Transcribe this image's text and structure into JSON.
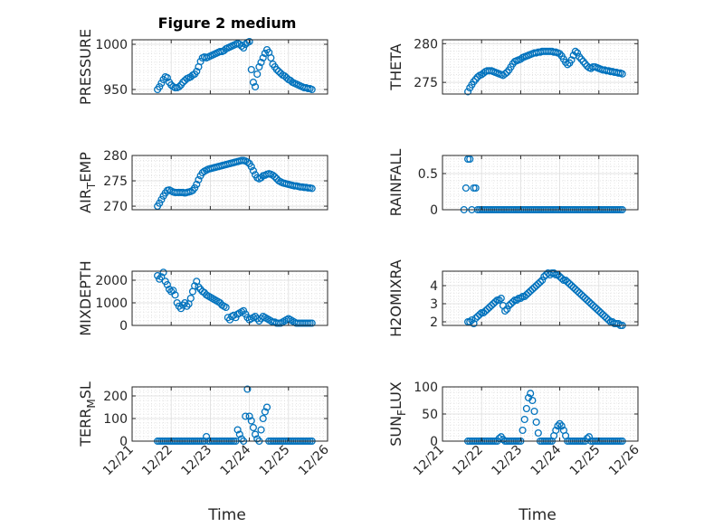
{
  "figure_title": "Figure 2 medium",
  "x_axis_label": "Time",
  "x_tick_labels": [
    "12/21",
    "12/22",
    "12/23",
    "12/24",
    "12/25",
    "12/26"
  ],
  "marker_color": "#0072BD",
  "chart_data": [
    {
      "type": "scatter",
      "ylabel": "PRESSURE",
      "xlim": [
        0,
        5
      ],
      "ylim": [
        945,
        1005
      ],
      "yticks": [
        950,
        1000
      ],
      "ytick_labels": [
        "950",
        "1000"
      ],
      "x": [
        0.65,
        0.7,
        0.75,
        0.8,
        0.85,
        0.9,
        0.95,
        1.0,
        1.05,
        1.1,
        1.15,
        1.2,
        1.25,
        1.3,
        1.35,
        1.4,
        1.45,
        1.5,
        1.55,
        1.6,
        1.65,
        1.7,
        1.75,
        1.8,
        1.85,
        1.9,
        1.95,
        2.0,
        2.05,
        2.1,
        2.15,
        2.2,
        2.25,
        2.3,
        2.35,
        2.4,
        2.45,
        2.5,
        2.55,
        2.6,
        2.65,
        2.7,
        2.75,
        2.8,
        2.85,
        2.9,
        2.95,
        3.0,
        3.05,
        3.1,
        3.15,
        3.2,
        3.25,
        3.3,
        3.35,
        3.4,
        3.45,
        3.5,
        3.55,
        3.6,
        3.65,
        3.7,
        3.75,
        3.8,
        3.85,
        3.9,
        3.95,
        4.0,
        4.05,
        4.1,
        4.15,
        4.2,
        4.25,
        4.3,
        4.35,
        4.4,
        4.45,
        4.5,
        4.55,
        4.6
      ],
      "y": [
        950,
        953,
        957,
        961,
        964,
        963,
        958,
        955,
        953,
        952,
        952,
        953,
        955,
        958,
        960,
        962,
        963,
        964,
        966,
        967,
        970,
        975,
        981,
        985,
        986,
        985,
        986,
        987,
        988,
        989,
        990,
        991,
        992,
        992,
        993,
        995,
        996,
        997,
        998,
        999,
        1000,
        1001,
        1000,
        998,
        996,
        1000,
        1002,
        1003,
        972,
        958,
        953,
        967,
        975,
        980,
        985,
        990,
        994,
        991,
        985,
        978,
        975,
        972,
        970,
        968,
        966,
        965,
        963,
        961,
        960,
        958,
        957,
        956,
        955,
        954,
        953,
        952,
        952,
        951,
        951,
        950
      ]
    },
    {
      "type": "scatter",
      "ylabel": "THETA",
      "xlim": [
        0,
        5
      ],
      "ylim": [
        273.5,
        280.5
      ],
      "yticks": [
        275,
        280
      ],
      "ytick_labels": [
        "275",
        "280"
      ],
      "x": [
        0.65,
        0.7,
        0.75,
        0.8,
        0.85,
        0.9,
        0.95,
        1.0,
        1.05,
        1.1,
        1.15,
        1.2,
        1.25,
        1.3,
        1.35,
        1.4,
        1.45,
        1.5,
        1.55,
        1.6,
        1.65,
        1.7,
        1.75,
        1.8,
        1.85,
        1.9,
        1.95,
        2.0,
        2.05,
        2.1,
        2.15,
        2.2,
        2.25,
        2.3,
        2.35,
        2.4,
        2.45,
        2.5,
        2.55,
        2.6,
        2.65,
        2.7,
        2.75,
        2.8,
        2.85,
        2.9,
        2.95,
        3.0,
        3.05,
        3.1,
        3.15,
        3.2,
        3.25,
        3.3,
        3.35,
        3.4,
        3.45,
        3.5,
        3.55,
        3.6,
        3.65,
        3.7,
        3.75,
        3.8,
        3.85,
        3.9,
        3.95,
        4.0,
        4.05,
        4.1,
        4.15,
        4.2,
        4.25,
        4.3,
        4.35,
        4.4,
        4.45,
        4.5,
        4.55,
        4.6
      ],
      "y": [
        273.8,
        274.3,
        274.7,
        275.1,
        275.4,
        275.7,
        275.9,
        276.0,
        276.2,
        276.4,
        276.5,
        276.5,
        276.5,
        276.4,
        276.3,
        276.2,
        276.1,
        276.0,
        275.9,
        276.1,
        276.3,
        276.6,
        277.0,
        277.4,
        277.7,
        277.8,
        277.9,
        278.0,
        278.2,
        278.3,
        278.4,
        278.5,
        278.6,
        278.7,
        278.8,
        278.8,
        278.9,
        278.9,
        279.0,
        279.0,
        279.0,
        279.0,
        279.0,
        279.0,
        278.9,
        278.9,
        278.8,
        278.7,
        278.4,
        278.0,
        277.6,
        277.3,
        277.5,
        277.9,
        278.5,
        279.0,
        278.8,
        278.3,
        278.0,
        277.7,
        277.4,
        277.1,
        276.9,
        276.8,
        277.0,
        277.0,
        276.9,
        276.8,
        276.7,
        276.6,
        276.6,
        276.5,
        276.5,
        276.4,
        276.4,
        276.3,
        276.3,
        276.2,
        276.2,
        276.1
      ]
    },
    {
      "type": "scatter",
      "ylabel": "AIR_TEMP",
      "xlim": [
        0,
        5
      ],
      "ylim": [
        269.3,
        280
      ],
      "yticks": [
        270,
        275,
        280
      ],
      "ytick_labels": [
        "270",
        "275",
        "280"
      ],
      "x": [
        0.65,
        0.7,
        0.75,
        0.8,
        0.85,
        0.9,
        0.95,
        1.0,
        1.05,
        1.1,
        1.15,
        1.2,
        1.25,
        1.3,
        1.35,
        1.4,
        1.45,
        1.5,
        1.55,
        1.6,
        1.65,
        1.7,
        1.75,
        1.8,
        1.85,
        1.9,
        1.95,
        2.0,
        2.05,
        2.1,
        2.15,
        2.2,
        2.25,
        2.3,
        2.35,
        2.4,
        2.45,
        2.5,
        2.55,
        2.6,
        2.65,
        2.7,
        2.75,
        2.8,
        2.85,
        2.9,
        2.95,
        3.0,
        3.05,
        3.1,
        3.15,
        3.2,
        3.25,
        3.3,
        3.35,
        3.4,
        3.45,
        3.5,
        3.55,
        3.6,
        3.65,
        3.7,
        3.75,
        3.8,
        3.85,
        3.9,
        3.95,
        4.0,
        4.05,
        4.1,
        4.15,
        4.2,
        4.25,
        4.3,
        4.35,
        4.4,
        4.45,
        4.5,
        4.55,
        4.6
      ],
      "y": [
        270.0,
        270.6,
        271.3,
        272.0,
        272.6,
        273.1,
        273.2,
        273.0,
        272.8,
        272.7,
        272.7,
        272.7,
        272.7,
        272.7,
        272.6,
        272.7,
        272.8,
        272.9,
        273.1,
        273.6,
        274.3,
        275.2,
        276.0,
        276.6,
        276.9,
        277.1,
        277.3,
        277.4,
        277.5,
        277.6,
        277.7,
        277.8,
        277.9,
        278.0,
        278.1,
        278.2,
        278.3,
        278.4,
        278.5,
        278.6,
        278.7,
        278.8,
        278.9,
        279.0,
        279.0,
        278.9,
        278.7,
        278.4,
        277.8,
        277.0,
        276.2,
        275.6,
        275.4,
        275.6,
        276.0,
        276.1,
        276.3,
        276.4,
        276.3,
        276.1,
        275.8,
        275.4,
        275.0,
        274.8,
        274.6,
        274.5,
        274.4,
        274.3,
        274.2,
        274.1,
        274.0,
        274.0,
        273.9,
        273.8,
        273.8,
        273.7,
        273.7,
        273.6,
        273.6,
        273.5
      ]
    },
    {
      "type": "scatter",
      "ylabel": "RAINFALL",
      "xlim": [
        0,
        5
      ],
      "ylim": [
        0,
        0.75
      ],
      "yticks": [
        0,
        0.5
      ],
      "ytick_labels": [
        "0",
        "0.5"
      ],
      "x": [
        0.55,
        0.6,
        0.65,
        0.7,
        0.75,
        0.8,
        0.85,
        0.9,
        0.95,
        1.0,
        1.05,
        1.1,
        1.15,
        1.2,
        1.25,
        1.3,
        1.35,
        1.4,
        1.45,
        1.5,
        1.55,
        1.6,
        1.65,
        1.7,
        1.75,
        1.8,
        1.85,
        1.9,
        1.95,
        2.0,
        2.05,
        2.1,
        2.15,
        2.2,
        2.25,
        2.3,
        2.35,
        2.4,
        2.45,
        2.5,
        2.55,
        2.6,
        2.65,
        2.7,
        2.75,
        2.8,
        2.85,
        2.9,
        2.95,
        3.0,
        3.05,
        3.1,
        3.15,
        3.2,
        3.25,
        3.3,
        3.35,
        3.4,
        3.45,
        3.5,
        3.55,
        3.6,
        3.65,
        3.7,
        3.75,
        3.8,
        3.85,
        3.9,
        3.95,
        4.0,
        4.05,
        4.1,
        4.15,
        4.2,
        4.25,
        4.3,
        4.35,
        4.4,
        4.45,
        4.5,
        4.55,
        4.6
      ],
      "y": [
        0,
        0.3,
        0.7,
        0.7,
        0,
        0.3,
        0.3,
        0,
        0,
        0,
        0,
        0,
        0,
        0,
        0,
        0,
        0,
        0,
        0,
        0,
        0,
        0,
        0,
        0,
        0,
        0,
        0,
        0,
        0,
        0,
        0,
        0,
        0,
        0,
        0,
        0,
        0,
        0,
        0,
        0,
        0,
        0,
        0,
        0,
        0,
        0,
        0,
        0,
        0,
        0,
        0,
        0,
        0,
        0,
        0,
        0,
        0,
        0,
        0,
        0,
        0,
        0,
        0,
        0,
        0,
        0,
        0,
        0,
        0,
        0,
        0,
        0,
        0,
        0,
        0,
        0,
        0,
        0,
        0,
        0,
        0,
        0
      ]
    },
    {
      "type": "scatter",
      "ylabel": "MIXDEPTH",
      "xlim": [
        0,
        5
      ],
      "ylim": [
        0,
        2400
      ],
      "yticks": [
        0,
        1000,
        2000
      ],
      "ytick_labels": [
        "0",
        "1000",
        "2000"
      ],
      "x": [
        0.65,
        0.7,
        0.75,
        0.8,
        0.85,
        0.9,
        0.95,
        1.0,
        1.05,
        1.1,
        1.15,
        1.2,
        1.25,
        1.3,
        1.35,
        1.4,
        1.45,
        1.5,
        1.55,
        1.6,
        1.65,
        1.7,
        1.75,
        1.8,
        1.85,
        1.9,
        1.95,
        2.0,
        2.05,
        2.1,
        2.15,
        2.2,
        2.25,
        2.3,
        2.35,
        2.4,
        2.45,
        2.5,
        2.55,
        2.6,
        2.65,
        2.7,
        2.75,
        2.8,
        2.85,
        2.9,
        2.95,
        3.0,
        3.05,
        3.1,
        3.15,
        3.2,
        3.25,
        3.3,
        3.35,
        3.4,
        3.45,
        3.5,
        3.55,
        3.6,
        3.65,
        3.7,
        3.75,
        3.8,
        3.85,
        3.9,
        3.95,
        4.0,
        4.05,
        4.1,
        4.15,
        4.2,
        4.25,
        4.3,
        4.35,
        4.4,
        4.45,
        4.5,
        4.55,
        4.6
      ],
      "y": [
        2200,
        2050,
        2150,
        2350,
        1950,
        1800,
        1600,
        1500,
        1550,
        1350,
        1000,
        850,
        750,
        900,
        1000,
        850,
        950,
        1200,
        1500,
        1750,
        1950,
        1700,
        1600,
        1500,
        1450,
        1350,
        1300,
        1250,
        1200,
        1150,
        1100,
        1050,
        1000,
        900,
        850,
        800,
        350,
        250,
        400,
        450,
        350,
        500,
        550,
        600,
        650,
        500,
        350,
        250,
        300,
        350,
        400,
        300,
        200,
        300,
        400,
        350,
        300,
        250,
        200,
        150,
        150,
        100,
        100,
        100,
        150,
        200,
        250,
        300,
        250,
        200,
        150,
        100,
        100,
        100,
        100,
        100,
        100,
        100,
        100,
        100
      ]
    },
    {
      "type": "scatter",
      "ylabel": "H2OMIXRA",
      "xlim": [
        0,
        5
      ],
      "ylim": [
        1.8,
        4.8
      ],
      "yticks": [
        2,
        3,
        4
      ],
      "ytick_labels": [
        "2",
        "3",
        "4"
      ],
      "x": [
        0.65,
        0.7,
        0.75,
        0.8,
        0.85,
        0.9,
        0.95,
        1.0,
        1.05,
        1.1,
        1.15,
        1.2,
        1.25,
        1.3,
        1.35,
        1.4,
        1.45,
        1.5,
        1.55,
        1.6,
        1.65,
        1.7,
        1.75,
        1.8,
        1.85,
        1.9,
        1.95,
        2.0,
        2.05,
        2.1,
        2.15,
        2.2,
        2.25,
        2.3,
        2.35,
        2.4,
        2.45,
        2.5,
        2.55,
        2.6,
        2.65,
        2.7,
        2.75,
        2.8,
        2.85,
        2.9,
        2.95,
        3.0,
        3.05,
        3.1,
        3.15,
        3.2,
        3.25,
        3.3,
        3.35,
        3.4,
        3.45,
        3.5,
        3.55,
        3.6,
        3.65,
        3.7,
        3.75,
        3.8,
        3.85,
        3.9,
        3.95,
        4.0,
        4.05,
        4.1,
        4.15,
        4.2,
        4.25,
        4.3,
        4.35,
        4.4,
        4.45,
        4.5,
        4.55,
        4.6
      ],
      "y": [
        2.0,
        2.0,
        2.1,
        1.9,
        2.2,
        2.3,
        2.4,
        2.5,
        2.5,
        2.6,
        2.7,
        2.8,
        2.9,
        3.0,
        3.1,
        3.2,
        3.2,
        3.3,
        2.9,
        2.6,
        2.7,
        2.9,
        3.0,
        3.1,
        3.2,
        3.2,
        3.3,
        3.3,
        3.4,
        3.4,
        3.5,
        3.6,
        3.7,
        3.8,
        3.9,
        4.0,
        4.1,
        4.2,
        4.3,
        4.5,
        4.6,
        4.7,
        4.6,
        4.7,
        4.7,
        4.6,
        4.6,
        4.5,
        4.4,
        4.3,
        4.3,
        4.2,
        4.1,
        4.0,
        3.9,
        3.8,
        3.7,
        3.6,
        3.5,
        3.4,
        3.3,
        3.2,
        3.1,
        3.0,
        2.9,
        2.8,
        2.7,
        2.6,
        2.5,
        2.4,
        2.3,
        2.2,
        2.1,
        2.0,
        2.0,
        1.9,
        1.9,
        1.9,
        1.8,
        1.8
      ]
    },
    {
      "type": "scatter",
      "ylabel": "TERR_MSL",
      "xlim": [
        0,
        5
      ],
      "ylim": [
        0,
        240
      ],
      "yticks": [
        0,
        100,
        200
      ],
      "ytick_labels": [
        "0",
        "100",
        "200"
      ],
      "x": [
        0.65,
        0.7,
        0.75,
        0.8,
        0.85,
        0.9,
        0.95,
        1.0,
        1.05,
        1.1,
        1.15,
        1.2,
        1.25,
        1.3,
        1.35,
        1.4,
        1.45,
        1.5,
        1.55,
        1.6,
        1.65,
        1.7,
        1.75,
        1.8,
        1.85,
        1.9,
        1.95,
        2.0,
        2.05,
        2.1,
        2.15,
        2.2,
        2.25,
        2.3,
        2.35,
        2.4,
        2.45,
        2.5,
        2.55,
        2.6,
        2.65,
        2.7,
        2.75,
        2.8,
        2.85,
        2.9,
        2.95,
        3.0,
        3.05,
        3.1,
        3.15,
        3.2,
        3.25,
        3.3,
        3.35,
        3.4,
        3.45,
        3.5,
        3.55,
        3.6,
        3.65,
        3.7,
        3.75,
        3.8,
        3.85,
        3.9,
        3.95,
        4.0,
        4.05,
        4.1,
        4.15,
        4.2,
        4.25,
        4.3,
        4.35,
        4.4,
        4.45,
        4.5,
        4.55,
        4.6
      ],
      "y": [
        0,
        0,
        0,
        0,
        0,
        0,
        0,
        0,
        0,
        0,
        0,
        0,
        0,
        0,
        0,
        0,
        0,
        0,
        0,
        0,
        0,
        0,
        0,
        0,
        0,
        20,
        0,
        0,
        0,
        0,
        0,
        0,
        0,
        0,
        0,
        0,
        0,
        0,
        0,
        0,
        0,
        50,
        30,
        10,
        0,
        110,
        230,
        110,
        90,
        60,
        30,
        10,
        0,
        50,
        100,
        130,
        150,
        0,
        0,
        0,
        0,
        0,
        0,
        0,
        0,
        0,
        0,
        0,
        0,
        0,
        0,
        0,
        0,
        0,
        0,
        0,
        0,
        0,
        0,
        0
      ]
    },
    {
      "type": "scatter",
      "ylabel": "SUN_FLUX",
      "xlim": [
        0,
        5
      ],
      "ylim": [
        0,
        100
      ],
      "yticks": [
        0,
        50,
        100
      ],
      "ytick_labels": [
        "0",
        "50",
        "100"
      ],
      "x": [
        0.65,
        0.7,
        0.75,
        0.8,
        0.85,
        0.9,
        0.95,
        1.0,
        1.05,
        1.1,
        1.15,
        1.2,
        1.25,
        1.3,
        1.35,
        1.4,
        1.45,
        1.5,
        1.55,
        1.6,
        1.65,
        1.7,
        1.75,
        1.8,
        1.85,
        1.9,
        1.95,
        2.0,
        2.05,
        2.1,
        2.15,
        2.2,
        2.25,
        2.3,
        2.35,
        2.4,
        2.45,
        2.5,
        2.55,
        2.6,
        2.65,
        2.7,
        2.75,
        2.8,
        2.85,
        2.9,
        2.95,
        3.0,
        3.05,
        3.1,
        3.15,
        3.2,
        3.25,
        3.3,
        3.35,
        3.4,
        3.45,
        3.5,
        3.55,
        3.6,
        3.65,
        3.7,
        3.75,
        3.8,
        3.85,
        3.9,
        3.95,
        4.0,
        4.05,
        4.1,
        4.15,
        4.2,
        4.25,
        4.3,
        4.35,
        4.4,
        4.45,
        4.5,
        4.55,
        4.6
      ],
      "y": [
        0,
        0,
        0,
        0,
        0,
        0,
        0,
        0,
        0,
        0,
        0,
        0,
        0,
        0,
        0,
        0,
        5,
        8,
        3,
        0,
        0,
        0,
        0,
        0,
        0,
        0,
        0,
        0,
        20,
        40,
        60,
        80,
        88,
        75,
        55,
        35,
        15,
        0,
        0,
        0,
        0,
        0,
        0,
        0,
        10,
        20,
        28,
        32,
        28,
        20,
        10,
        0,
        0,
        0,
        0,
        0,
        0,
        0,
        0,
        0,
        0,
        5,
        8,
        0,
        0,
        0,
        0,
        0,
        0,
        0,
        0,
        0,
        0,
        0,
        0,
        0,
        0,
        0,
        0,
        0
      ]
    }
  ]
}
